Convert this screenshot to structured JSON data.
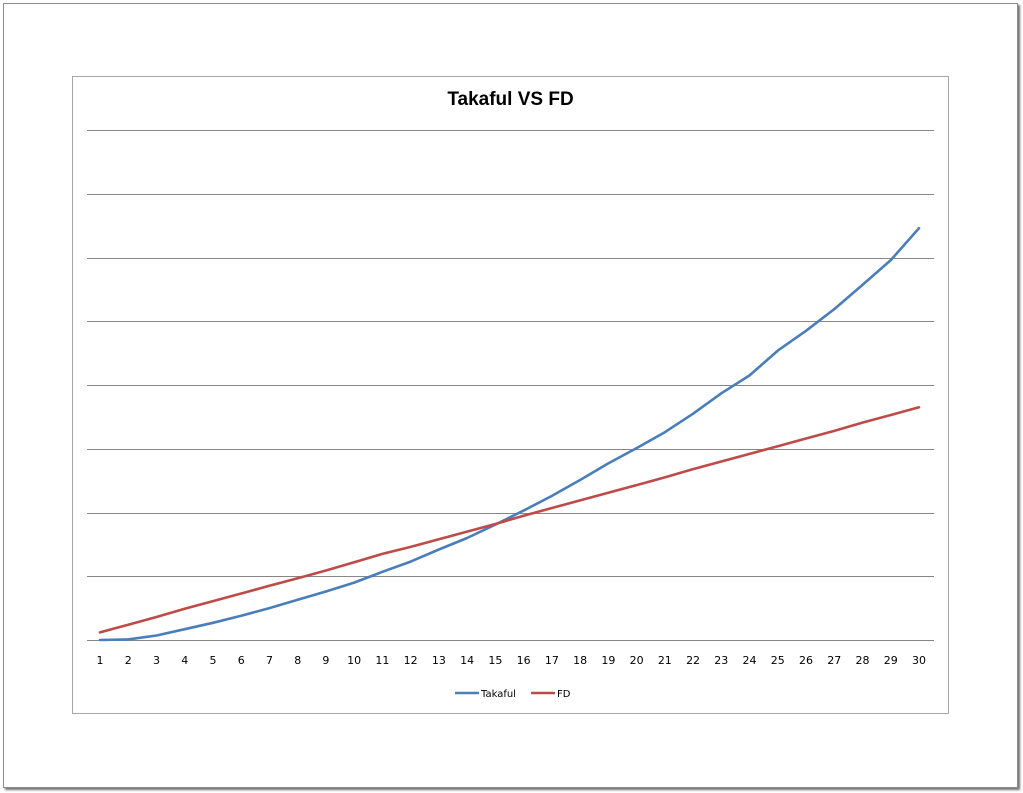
{
  "chart_data": {
    "type": "line",
    "title": "Takaful VS FD",
    "xlabel": "",
    "ylabel": "",
    "categories": [
      "1",
      "2",
      "3",
      "4",
      "5",
      "6",
      "7",
      "8",
      "9",
      "10",
      "11",
      "12",
      "13",
      "14",
      "15",
      "16",
      "17",
      "18",
      "19",
      "20",
      "21",
      "22",
      "23",
      "24",
      "25",
      "26",
      "27",
      "28",
      "29",
      "30"
    ],
    "ylim": [
      0,
      8
    ],
    "y_tick_labels_shown": false,
    "grid": true,
    "legend_position": "bottom",
    "series": [
      {
        "name": "Takaful",
        "color": "#4a7ebb",
        "values": [
          0.0,
          0.01,
          0.07,
          0.17,
          0.27,
          0.38,
          0.5,
          0.63,
          0.76,
          0.9,
          1.07,
          1.23,
          1.42,
          1.6,
          1.81,
          2.03,
          2.26,
          2.51,
          2.77,
          3.01,
          3.26,
          3.55,
          3.87,
          4.15,
          4.54,
          4.85,
          5.19,
          5.57,
          5.96,
          6.46
        ]
      },
      {
        "name": "FD",
        "color": "#be4b48",
        "values": [
          0.12,
          0.24,
          0.36,
          0.49,
          0.61,
          0.73,
          0.85,
          0.97,
          1.09,
          1.22,
          1.35,
          1.46,
          1.58,
          1.7,
          1.82,
          1.95,
          2.07,
          2.19,
          2.31,
          2.43,
          2.55,
          2.68,
          2.8,
          2.92,
          3.04,
          3.16,
          3.28,
          3.41,
          3.53,
          3.65
        ]
      }
    ]
  }
}
